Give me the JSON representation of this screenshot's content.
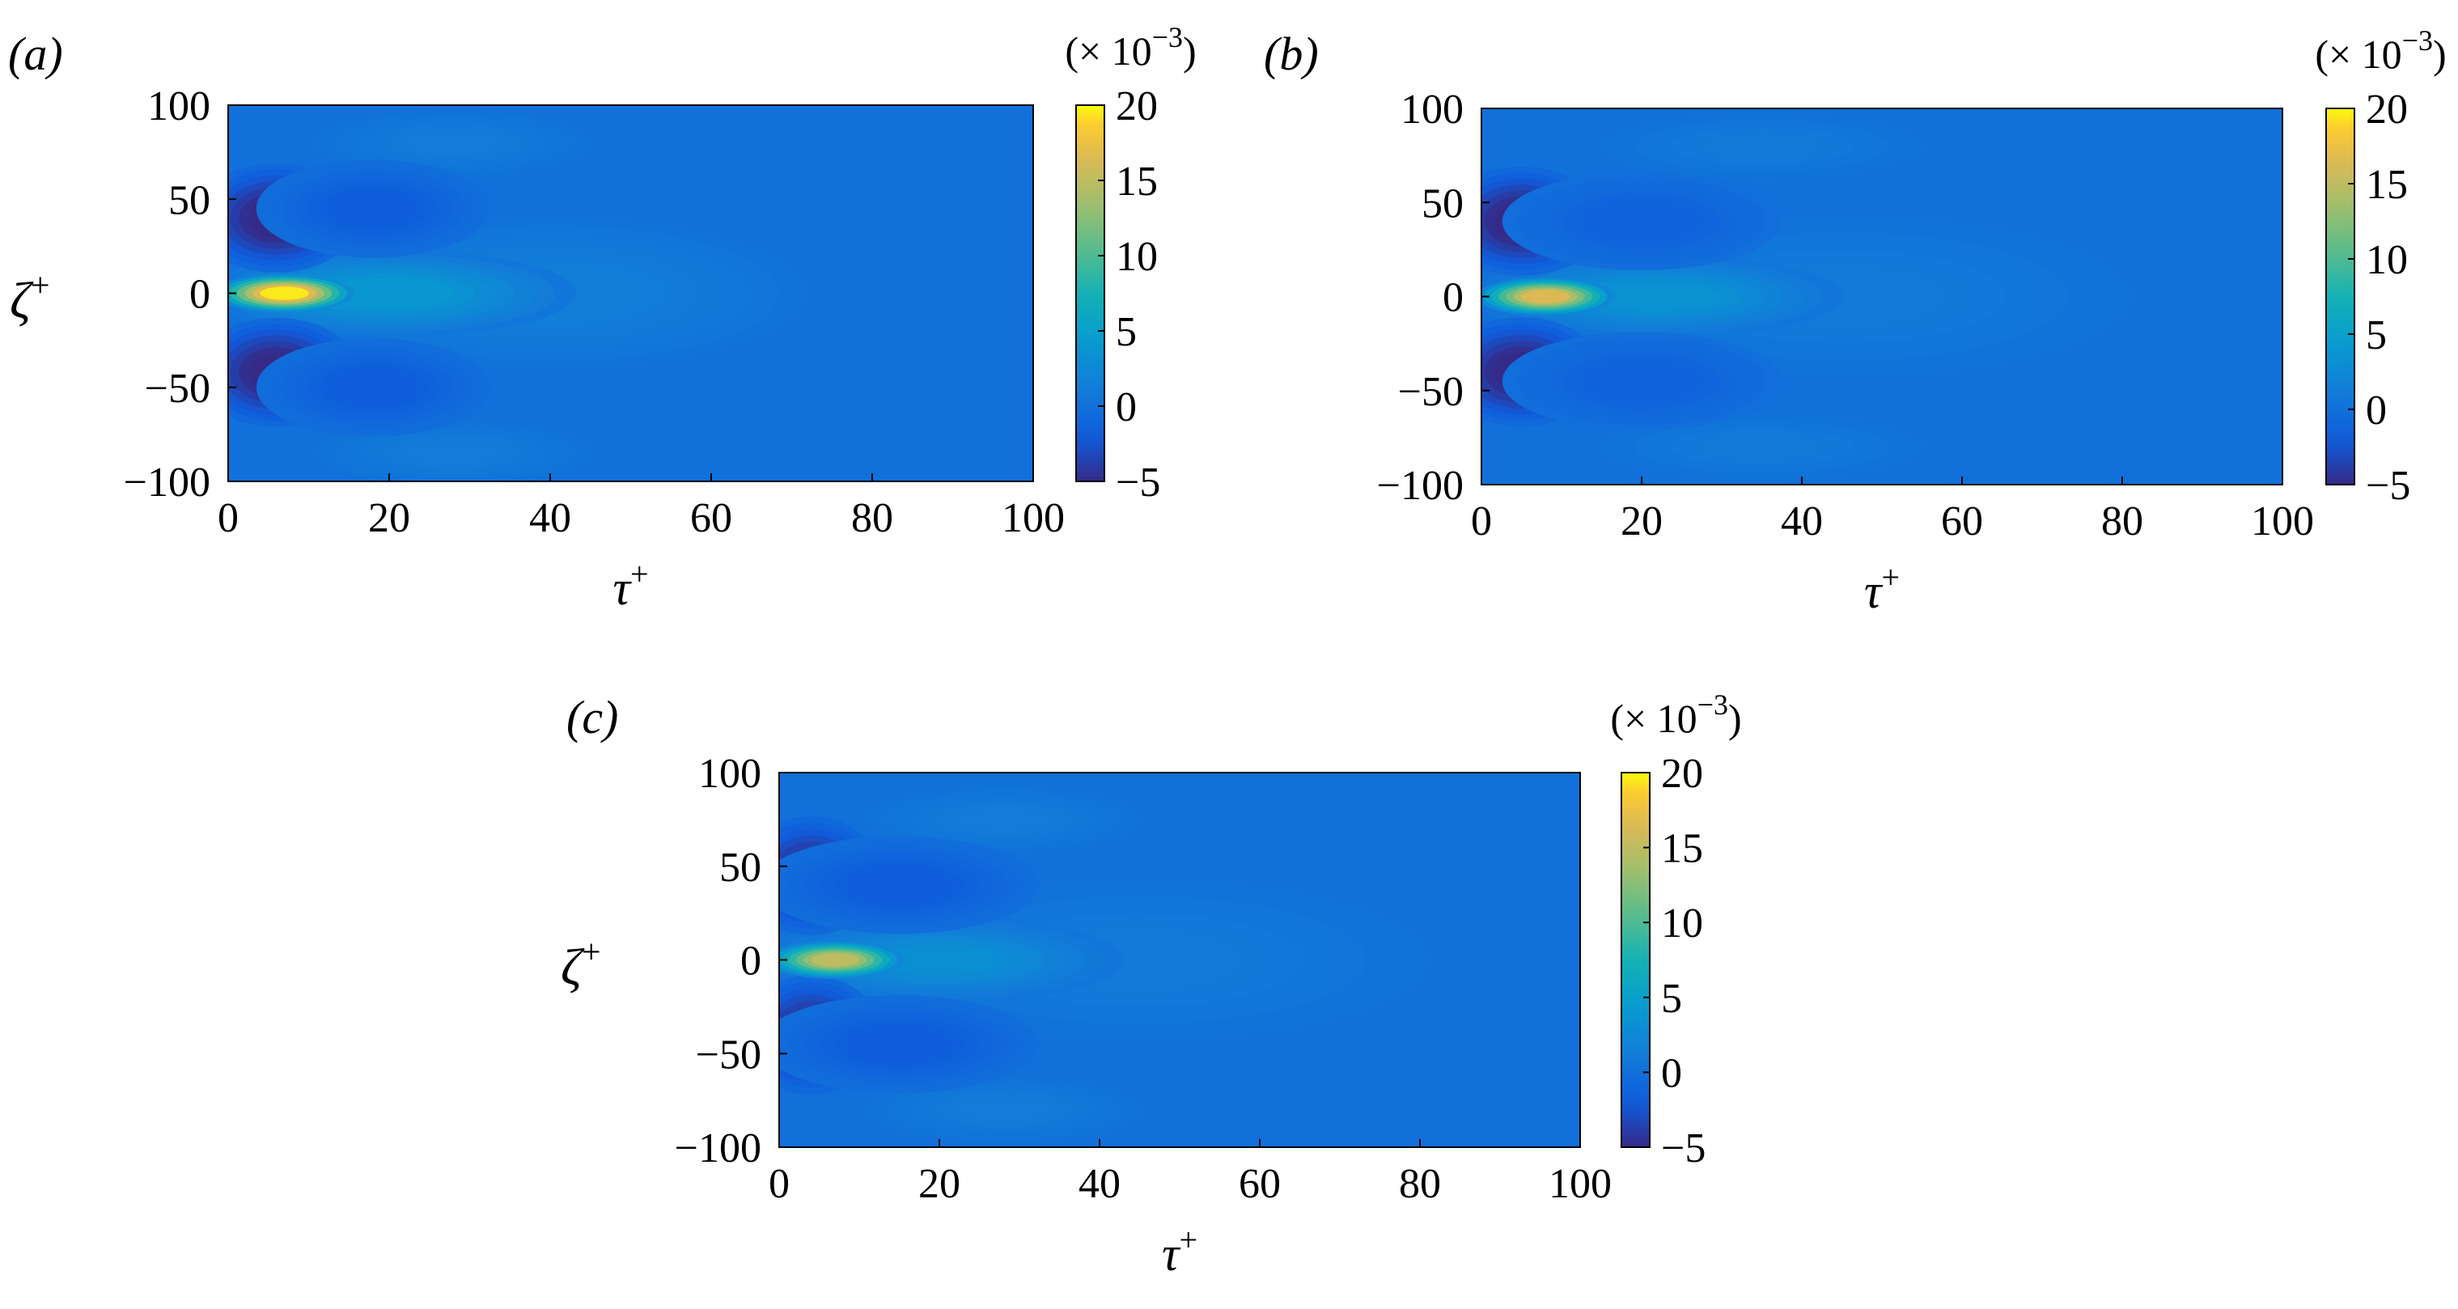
{
  "figure": {
    "panels": [
      {
        "label": "(a)"
      },
      {
        "label": "(b)"
      },
      {
        "label": "(c)"
      }
    ]
  },
  "chart_data": [
    {
      "type": "heatmap",
      "panel": "(a)",
      "xlabel": "τ+",
      "ylabel": "ζ+",
      "xlim": [
        0,
        100
      ],
      "ylim": [
        -100,
        100
      ],
      "xticks": [
        0,
        20,
        40,
        60,
        80,
        100
      ],
      "yticks": [
        -100,
        -50,
        0,
        50,
        100
      ],
      "colorbar": {
        "min": -5,
        "max": 20,
        "ticks": [
          -5,
          0,
          5,
          10,
          15,
          20
        ],
        "scale_label": "(× 10−3)",
        "colormap": "parula"
      },
      "background_value": 0,
      "features": [
        {
          "kind": "peak",
          "tau": 7,
          "zeta": 0,
          "value": 19.5,
          "tau_halfwidth": 6,
          "zeta_halfwidth": 7
        },
        {
          "kind": "ridge",
          "tau": 20,
          "zeta": 0,
          "value": 4,
          "tau_halfwidth": 16,
          "zeta_halfwidth": 16
        },
        {
          "kind": "tail",
          "tau": 40,
          "zeta": 0,
          "value": 1.5,
          "tau_halfwidth": 22,
          "zeta_halfwidth": 28
        },
        {
          "kind": "trough",
          "tau": 6,
          "zeta": 40,
          "value": -5.5,
          "tau_halfwidth": 7,
          "zeta_halfwidth": 20
        },
        {
          "kind": "trough",
          "tau": 6,
          "zeta": -42,
          "value": -5.5,
          "tau_halfwidth": 7,
          "zeta_halfwidth": 20
        },
        {
          "kind": "trough",
          "tau": 18,
          "zeta": 45,
          "value": -2,
          "tau_halfwidth": 10,
          "zeta_halfwidth": 18
        },
        {
          "kind": "trough",
          "tau": 18,
          "zeta": -50,
          "value": -2,
          "tau_halfwidth": 10,
          "zeta_halfwidth": 18
        },
        {
          "kind": "weak",
          "tau": 28,
          "zeta": 80,
          "value": 1.2,
          "tau_halfwidth": 12,
          "zeta_halfwidth": 12
        },
        {
          "kind": "weak",
          "tau": 28,
          "zeta": -85,
          "value": 1.2,
          "tau_halfwidth": 12,
          "zeta_halfwidth": 12
        }
      ]
    },
    {
      "type": "heatmap",
      "panel": "(b)",
      "xlabel": "τ+",
      "ylabel": "",
      "xlim": [
        0,
        100
      ],
      "ylim": [
        -100,
        100
      ],
      "xticks": [
        0,
        20,
        40,
        60,
        80,
        100
      ],
      "yticks": [
        -100,
        -50,
        0,
        50,
        100
      ],
      "colorbar": {
        "min": -5,
        "max": 20,
        "ticks": [
          -5,
          0,
          5,
          10,
          15,
          20
        ],
        "scale_label": "(× 10−3)",
        "colormap": "parula"
      },
      "background_value": 0,
      "features": [
        {
          "kind": "peak",
          "tau": 8,
          "zeta": 0,
          "value": 16.5,
          "tau_halfwidth": 6,
          "zeta_halfwidth": 7
        },
        {
          "kind": "ridge",
          "tau": 22,
          "zeta": 0,
          "value": 3.5,
          "tau_halfwidth": 16,
          "zeta_halfwidth": 15
        },
        {
          "kind": "tail",
          "tau": 45,
          "zeta": 0,
          "value": 1,
          "tau_halfwidth": 25,
          "zeta_halfwidth": 30
        },
        {
          "kind": "trough",
          "tau": 5,
          "zeta": 40,
          "value": -5.5,
          "tau_halfwidth": 7,
          "zeta_halfwidth": 20
        },
        {
          "kind": "trough",
          "tau": 5,
          "zeta": -40,
          "value": -5.5,
          "tau_halfwidth": 7,
          "zeta_halfwidth": 20
        },
        {
          "kind": "trough",
          "tau": 20,
          "zeta": 40,
          "value": -1.5,
          "tau_halfwidth": 12,
          "zeta_halfwidth": 18
        },
        {
          "kind": "trough",
          "tau": 20,
          "zeta": -45,
          "value": -1.5,
          "tau_halfwidth": 12,
          "zeta_halfwidth": 18
        },
        {
          "kind": "weak",
          "tau": 35,
          "zeta": 80,
          "value": 1,
          "tau_halfwidth": 14,
          "zeta_halfwidth": 12
        },
        {
          "kind": "weak",
          "tau": 35,
          "zeta": -80,
          "value": 1,
          "tau_halfwidth": 14,
          "zeta_halfwidth": 12
        }
      ]
    },
    {
      "type": "heatmap",
      "panel": "(c)",
      "xlabel": "τ+",
      "ylabel": "ζ+",
      "xlim": [
        0,
        100
      ],
      "ylim": [
        -100,
        100
      ],
      "xticks": [
        0,
        20,
        40,
        60,
        80,
        100
      ],
      "yticks": [
        -100,
        -50,
        0,
        50,
        100
      ],
      "colorbar": {
        "min": -5,
        "max": 20,
        "ticks": [
          -5,
          0,
          5,
          10,
          15,
          20
        ],
        "scale_label": "(× 10−3)",
        "colormap": "parula"
      },
      "background_value": 0,
      "features": [
        {
          "kind": "peak",
          "tau": 7,
          "zeta": 0,
          "value": 15,
          "tau_halfwidth": 6,
          "zeta_halfwidth": 7
        },
        {
          "kind": "ridge",
          "tau": 20,
          "zeta": 0,
          "value": 3,
          "tau_halfwidth": 16,
          "zeta_halfwidth": 16
        },
        {
          "kind": "tail",
          "tau": 45,
          "zeta": 0,
          "value": 1,
          "tau_halfwidth": 25,
          "zeta_halfwidth": 30
        },
        {
          "kind": "trough",
          "tau": 4,
          "zeta": 45,
          "value": -5,
          "tau_halfwidth": 6,
          "zeta_halfwidth": 22
        },
        {
          "kind": "trough",
          "tau": 4,
          "zeta": -40,
          "value": -5,
          "tau_halfwidth": 6,
          "zeta_halfwidth": 22
        },
        {
          "kind": "trough",
          "tau": 15,
          "zeta": 40,
          "value": -2,
          "tau_halfwidth": 12,
          "zeta_halfwidth": 18
        },
        {
          "kind": "trough",
          "tau": 15,
          "zeta": -45,
          "value": -2,
          "tau_halfwidth": 12,
          "zeta_halfwidth": 18
        },
        {
          "kind": "weak",
          "tau": 28,
          "zeta": 75,
          "value": 1.2,
          "tau_halfwidth": 12,
          "zeta_halfwidth": 12
        },
        {
          "kind": "weak",
          "tau": 28,
          "zeta": -80,
          "value": 1.2,
          "tau_halfwidth": 12,
          "zeta_halfwidth": 12
        }
      ]
    }
  ]
}
